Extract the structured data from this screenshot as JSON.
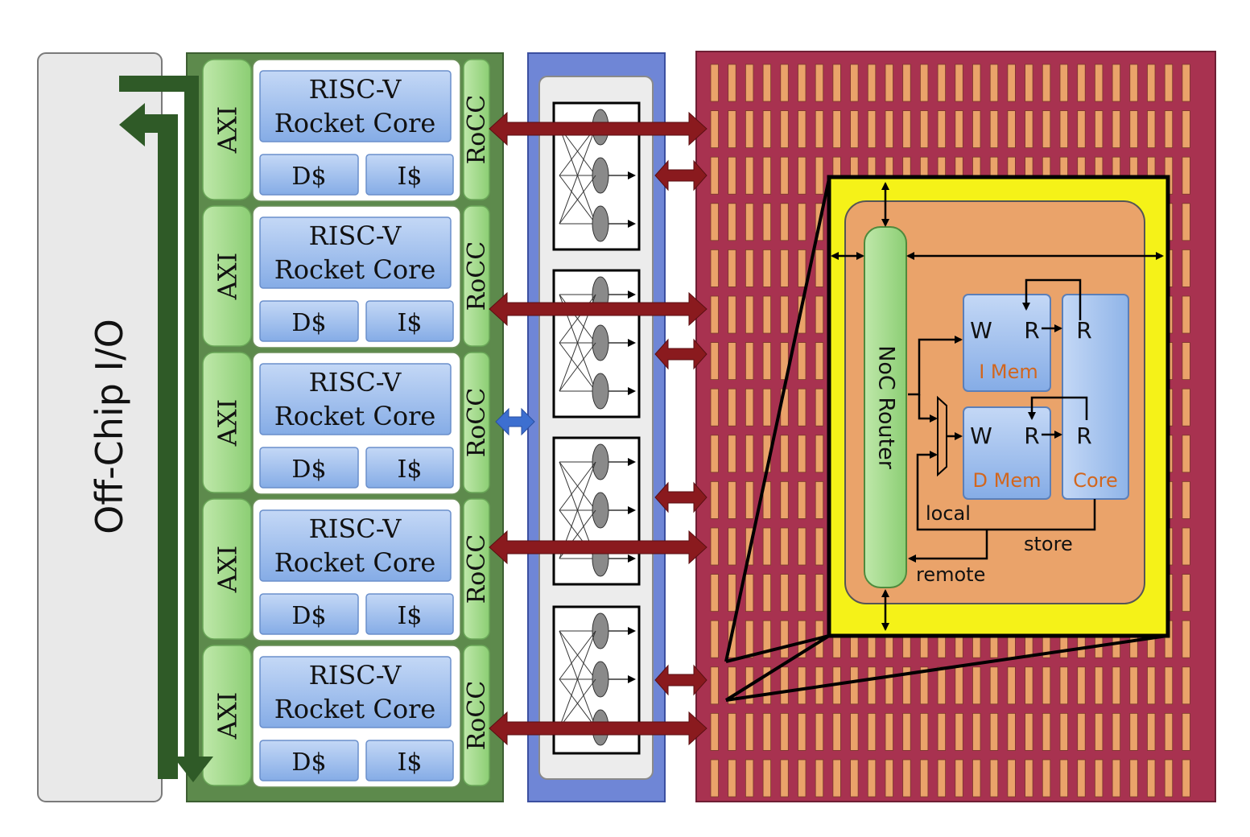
{
  "offchip": {
    "label": "Off-Chip I/O"
  },
  "core_cluster": {
    "axi_label": "AXI",
    "rocc_label": "RoCC",
    "cores": [
      {
        "core_line1": "RISC-V",
        "core_line2": "Rocket Core",
        "dcache": "D$",
        "icache": "I$"
      },
      {
        "core_line1": "RISC-V",
        "core_line2": "Rocket Core",
        "dcache": "D$",
        "icache": "I$"
      },
      {
        "core_line1": "RISC-V",
        "core_line2": "Rocket Core",
        "dcache": "D$",
        "icache": "I$"
      },
      {
        "core_line1": "RISC-V",
        "core_line2": "Rocket Core",
        "dcache": "D$",
        "icache": "I$"
      },
      {
        "core_line1": "RISC-V",
        "core_line2": "Rocket Core",
        "dcache": "D$",
        "icache": "I$"
      }
    ]
  },
  "tile_detail": {
    "router_label": "NoC Router",
    "imem": {
      "w": "W",
      "r": "R",
      "name": "I Mem"
    },
    "dmem": {
      "w": "W",
      "r": "R",
      "name": "D Mem"
    },
    "core": {
      "r_top": "R",
      "r_bottom": "R",
      "name": "Core"
    },
    "labels": {
      "local": "local",
      "store": "store",
      "remote": "remote"
    }
  },
  "colors": {
    "axi_green": "#9fd68a",
    "cluster_green": "#5d8a4c",
    "io_arrow_green": "#2f5a27",
    "core_blue": "#8fb4e8",
    "noc_blue": "#6f86d6",
    "fabric_red": "#a83250",
    "tile_orange": "#eaa36a",
    "highlight_yellow": "#f5f218",
    "arrow_red": "#8a1a1e",
    "label_orange": "#d2661d"
  }
}
